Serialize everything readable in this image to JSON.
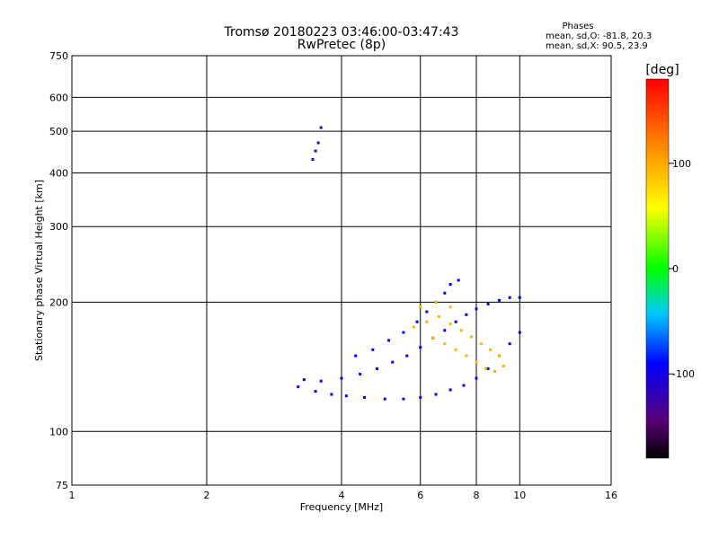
{
  "chart_data": {
    "type": "scatter",
    "title": "Tromsø 20180223 03:46:00-03:47:43",
    "subtitle": "RwPretec (8p)",
    "xlabel": "Frequency [MHz]",
    "ylabel": "Stationary phase Virtual Height [km]",
    "xscale": "log",
    "yscale": "log",
    "xlim": [
      1,
      16
    ],
    "ylim": [
      75,
      750
    ],
    "xticks": [
      1,
      2,
      4,
      6,
      8,
      10,
      16
    ],
    "yticks": [
      75,
      100,
      200,
      300,
      400,
      500,
      600,
      750
    ],
    "x_gridlines": [
      2,
      4,
      6,
      8,
      10
    ],
    "y_gridlines": [
      100,
      200,
      300,
      400,
      500,
      600
    ],
    "grid": true,
    "info": {
      "heading": "Phases",
      "line1": "mean, sd,O: -81.8, 20.3",
      "line2": "mean, sd,X:  90.5, 23.9"
    },
    "colorbar": {
      "label": "[deg]",
      "min": -180,
      "max": 180,
      "ticks": [
        100,
        0,
        -100
      ],
      "tick_labels": [
        "100",
        "0",
        "-100"
      ],
      "colormap": "rainbow (black-purple-blue-cyan-green-yellow-orange-red)"
    },
    "traces": [
      {
        "description": "O-mode lower trace",
        "phase": -100,
        "points": [
          [
            3.2,
            127
          ],
          [
            3.5,
            124
          ],
          [
            3.8,
            122
          ],
          [
            4.1,
            121
          ],
          [
            4.5,
            120
          ],
          [
            5.0,
            119
          ],
          [
            5.5,
            119
          ],
          [
            6.0,
            120
          ],
          [
            6.5,
            122
          ],
          [
            7.0,
            125
          ],
          [
            7.5,
            128
          ],
          [
            8.0,
            133
          ],
          [
            8.5,
            140
          ],
          [
            9.0,
            150
          ],
          [
            9.5,
            160
          ],
          [
            10.0,
            170
          ]
        ]
      },
      {
        "description": "O-mode middle trace",
        "phase": -95,
        "points": [
          [
            3.3,
            132
          ],
          [
            3.6,
            131
          ],
          [
            4.0,
            133
          ],
          [
            4.4,
            136
          ],
          [
            4.8,
            140
          ],
          [
            5.2,
            145
          ],
          [
            5.6,
            150
          ],
          [
            6.0,
            157
          ],
          [
            6.4,
            165
          ],
          [
            6.8,
            172
          ],
          [
            7.2,
            180
          ],
          [
            7.6,
            187
          ],
          [
            8.0,
            193
          ],
          [
            8.5,
            198
          ],
          [
            9.0,
            202
          ],
          [
            9.5,
            205
          ],
          [
            10.0,
            205
          ]
        ]
      },
      {
        "description": "O-mode upper trace",
        "phase": -90,
        "points": [
          [
            4.3,
            150
          ],
          [
            4.7,
            155
          ],
          [
            5.1,
            163
          ],
          [
            5.5,
            170
          ],
          [
            5.9,
            180
          ],
          [
            6.2,
            190
          ],
          [
            6.5,
            200
          ],
          [
            6.8,
            210
          ],
          [
            7.0,
            220
          ],
          [
            7.3,
            225
          ]
        ]
      },
      {
        "description": "X-mode cluster",
        "phase": 95,
        "points": [
          [
            5.8,
            175
          ],
          [
            6.2,
            180
          ],
          [
            6.6,
            185
          ],
          [
            7.0,
            178
          ],
          [
            7.4,
            172
          ],
          [
            7.8,
            166
          ],
          [
            8.2,
            160
          ],
          [
            8.6,
            155
          ],
          [
            9.0,
            150
          ],
          [
            6.4,
            165
          ],
          [
            6.8,
            160
          ],
          [
            7.2,
            155
          ],
          [
            7.6,
            150
          ],
          [
            8.0,
            145
          ],
          [
            8.4,
            140
          ],
          [
            8.8,
            138
          ],
          [
            9.2,
            142
          ],
          [
            6.0,
            195
          ],
          [
            6.5,
            200
          ],
          [
            7.0,
            195
          ]
        ]
      },
      {
        "description": "Isolated echoes near 3.5 MHz",
        "phase": -120,
        "points": [
          [
            3.45,
            430
          ],
          [
            3.5,
            450
          ],
          [
            3.55,
            470
          ],
          [
            3.6,
            510
          ]
        ]
      }
    ]
  }
}
